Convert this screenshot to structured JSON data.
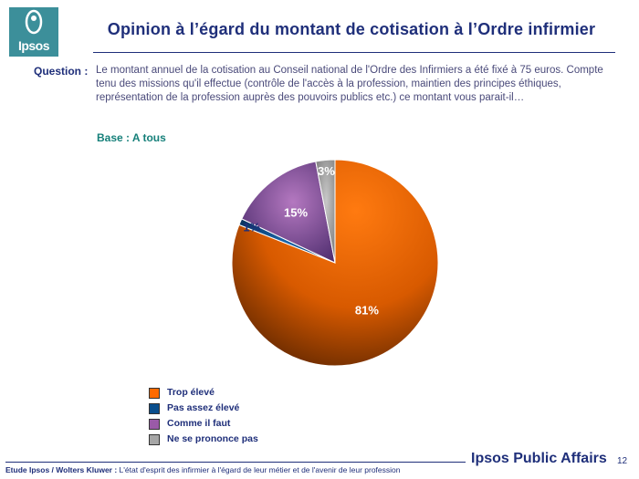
{
  "header": {
    "logo_text": "Ipsos",
    "title": "Opinion à l’égard du montant de cotisation à l’Ordre infirmier"
  },
  "question": {
    "label": "Question :",
    "text": "Le montant annuel de la cotisation au Conseil national de l'Ordre des Infirmiers a été fixé à 75 euros. Compte tenu des missions qu'il effectue (contrôle de l'accès à la profession, maintien des principes éthiques, représentation de la profession auprès des pouvoirs publics etc.) ce montant vous parait-il…"
  },
  "base": "Base : A tous",
  "chart_data": {
    "type": "pie",
    "title": "",
    "categories": [
      "Trop élevé",
      "Pas assez élevé",
      "Comme il faut",
      "Ne se prononce pas"
    ],
    "values": [
      81,
      1,
      15,
      3
    ],
    "data_labels": [
      "81%",
      "1%",
      "15%",
      "3%"
    ],
    "colors": [
      "#ff6a00",
      "#0a4e8c",
      "#9a5aa8",
      "#a6a6a6"
    ],
    "legend_position": "bottom-left"
  },
  "footer": {
    "study": "Etude Ipsos / Wolters Kluwer :",
    "description": "L'état d'esprit des infirmier à l'égard de leur métier et de l'avenir de leur profession",
    "brand": "Ipsos Public Affairs",
    "page_number": "12"
  }
}
